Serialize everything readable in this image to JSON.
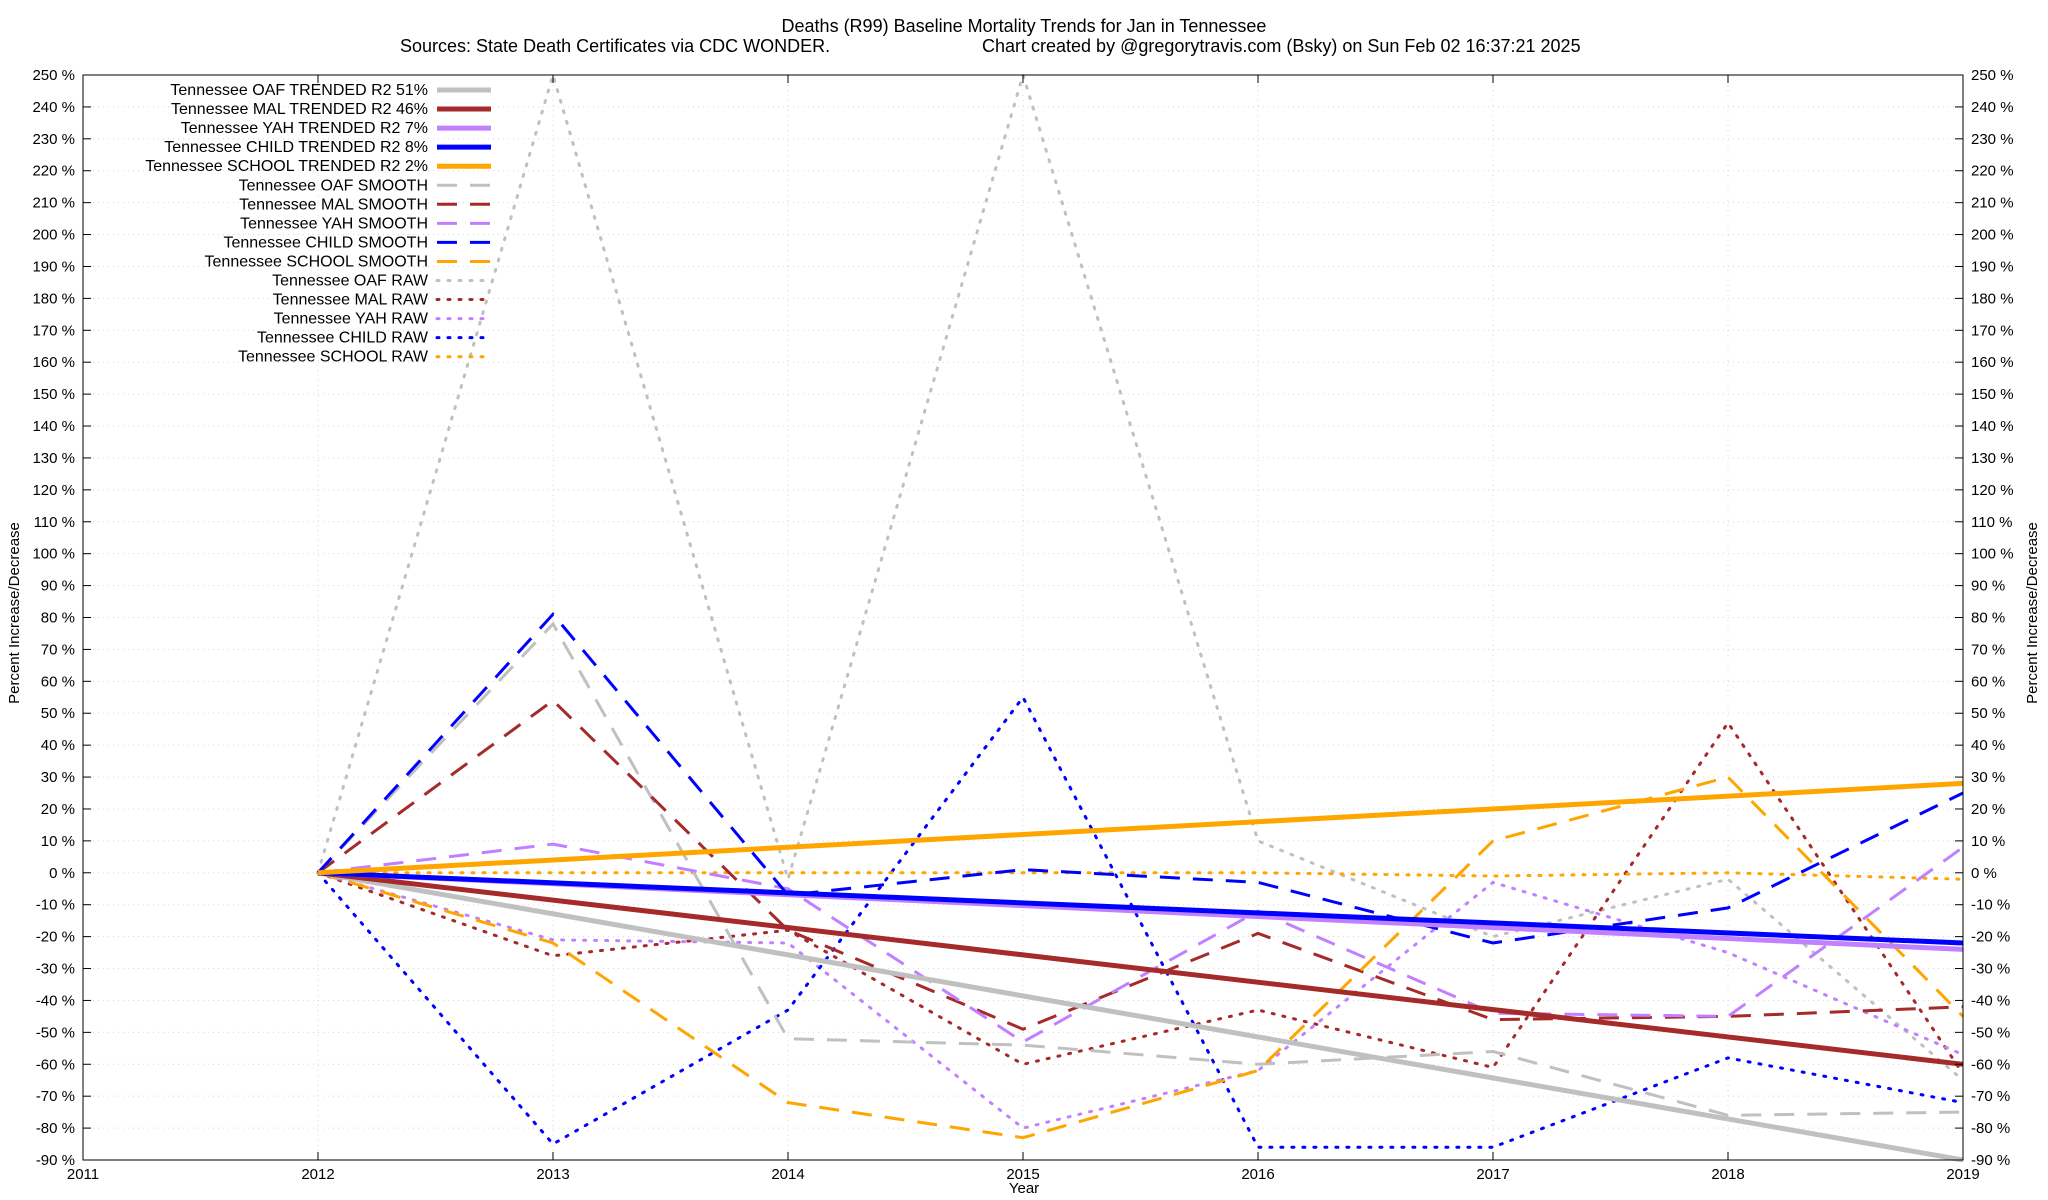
{
  "chart_data": {
    "type": "line",
    "title": "Deaths (R99)  Baseline Mortality Trends for Jan in Tennessee",
    "subtitle_left": "Sources: State Death Certificates via CDC WONDER.",
    "subtitle_right": "Chart created by @gregorytravis.com (Bsky) on Sun Feb 02 16:37:21 2025",
    "xlabel": "Year",
    "ylabel": "Percent Increase/Decrease",
    "ylabel_right": "Percent Increase/Decrease",
    "xlim": [
      2011,
      2019
    ],
    "ylim": [
      -90,
      250
    ],
    "x_ticks": [
      2011,
      2012,
      2013,
      2014,
      2015,
      2016,
      2017,
      2018,
      2019
    ],
    "y_tick_step": 10,
    "y_tick_suffix": " %",
    "grid": true,
    "legend_position": "top-left",
    "series": [
      {
        "name": "Tennessee OAF TRENDED R2",
        "r2": "51%",
        "style": "solid",
        "color": "#c0c0c0",
        "x": [
          2012,
          2019
        ],
        "y": [
          0,
          -90
        ]
      },
      {
        "name": "Tennessee MAL TRENDED R2",
        "r2": "46%",
        "style": "solid",
        "color": "#a52a2a",
        "x": [
          2012,
          2019
        ],
        "y": [
          0,
          -60
        ]
      },
      {
        "name": "Tennessee YAH TRENDED R2",
        "r2": "7%",
        "style": "solid",
        "color": "#c080ff",
        "x": [
          2012,
          2019
        ],
        "y": [
          0,
          -24
        ]
      },
      {
        "name": "Tennessee CHILD TRENDED R2",
        "r2": "8%",
        "style": "solid",
        "color": "#0000ff",
        "x": [
          2012,
          2019
        ],
        "y": [
          0,
          -22
        ]
      },
      {
        "name": "Tennessee SCHOOL TRENDED R2",
        "r2": "2%",
        "style": "solid",
        "color": "#ffa500",
        "x": [
          2012,
          2019
        ],
        "y": [
          0,
          28
        ]
      },
      {
        "name": "Tennessee OAF SMOOTH",
        "style": "dashed",
        "color": "#c0c0c0",
        "x": [
          2012,
          2013,
          2014,
          2015,
          2016,
          2017,
          2018,
          2019
        ],
        "y": [
          0,
          78,
          -52,
          -54,
          -60,
          -56,
          -76,
          -75
        ]
      },
      {
        "name": "Tennessee MAL SMOOTH",
        "style": "dashed",
        "color": "#a52a2a",
        "x": [
          2012,
          2013,
          2014,
          2015,
          2016,
          2017,
          2018,
          2019
        ],
        "y": [
          0,
          54,
          -18,
          -49,
          -19,
          -46,
          -45,
          -42
        ]
      },
      {
        "name": "Tennessee YAH SMOOTH",
        "style": "dashed",
        "color": "#c080ff",
        "x": [
          2012,
          2013,
          2014,
          2015,
          2016,
          2017,
          2018,
          2019
        ],
        "y": [
          0,
          9,
          -5,
          -53,
          -12,
          -44,
          -45,
          8
        ]
      },
      {
        "name": "Tennessee CHILD SMOOTH",
        "style": "dashed",
        "color": "#0000ff",
        "x": [
          2012,
          2013,
          2014,
          2015,
          2016,
          2017,
          2018,
          2019
        ],
        "y": [
          0,
          81,
          -7,
          1,
          -3,
          -22,
          -11,
          25
        ]
      },
      {
        "name": "Tennessee SCHOOL SMOOTH",
        "style": "dashed",
        "color": "#ffa500",
        "x": [
          2012,
          2013,
          2014,
          2015,
          2016,
          2017,
          2018,
          2019
        ],
        "y": [
          0,
          -22,
          -72,
          -83,
          -62,
          10,
          30,
          -45
        ]
      },
      {
        "name": "Tennessee OAF RAW",
        "style": "dotted",
        "color": "#c0c0c0",
        "x": [
          2012,
          2013,
          2014,
          2015,
          2016,
          2017,
          2018,
          2019
        ],
        "y": [
          0,
          250,
          -2,
          250,
          10,
          -20,
          -2,
          -65
        ]
      },
      {
        "name": "Tennessee MAL RAW",
        "style": "dotted",
        "color": "#a52a2a",
        "x": [
          2012,
          2013,
          2014,
          2015,
          2016,
          2017,
          2018,
          2019
        ],
        "y": [
          0,
          -26,
          -18,
          -60,
          -43,
          -61,
          47,
          -63
        ]
      },
      {
        "name": "Tennessee YAH RAW",
        "style": "dotted",
        "color": "#c080ff",
        "x": [
          2012,
          2013,
          2014,
          2015,
          2016,
          2017,
          2018,
          2019
        ],
        "y": [
          0,
          -21,
          -22,
          -80,
          -62,
          -3,
          -25,
          -57
        ]
      },
      {
        "name": "Tennessee CHILD RAW",
        "style": "dotted",
        "color": "#0000ff",
        "x": [
          2012,
          2013,
          2014,
          2015,
          2016,
          2017,
          2018,
          2019
        ],
        "y": [
          0,
          -85,
          -43,
          55,
          -86,
          -86,
          -58,
          -72
        ]
      },
      {
        "name": "Tennessee SCHOOL RAW",
        "style": "dotted",
        "color": "#ffa500",
        "x": [
          2012,
          2013,
          2014,
          2015,
          2016,
          2017,
          2018,
          2019
        ],
        "y": [
          0,
          0,
          0,
          0,
          0,
          -1,
          0,
          -2
        ]
      }
    ]
  }
}
